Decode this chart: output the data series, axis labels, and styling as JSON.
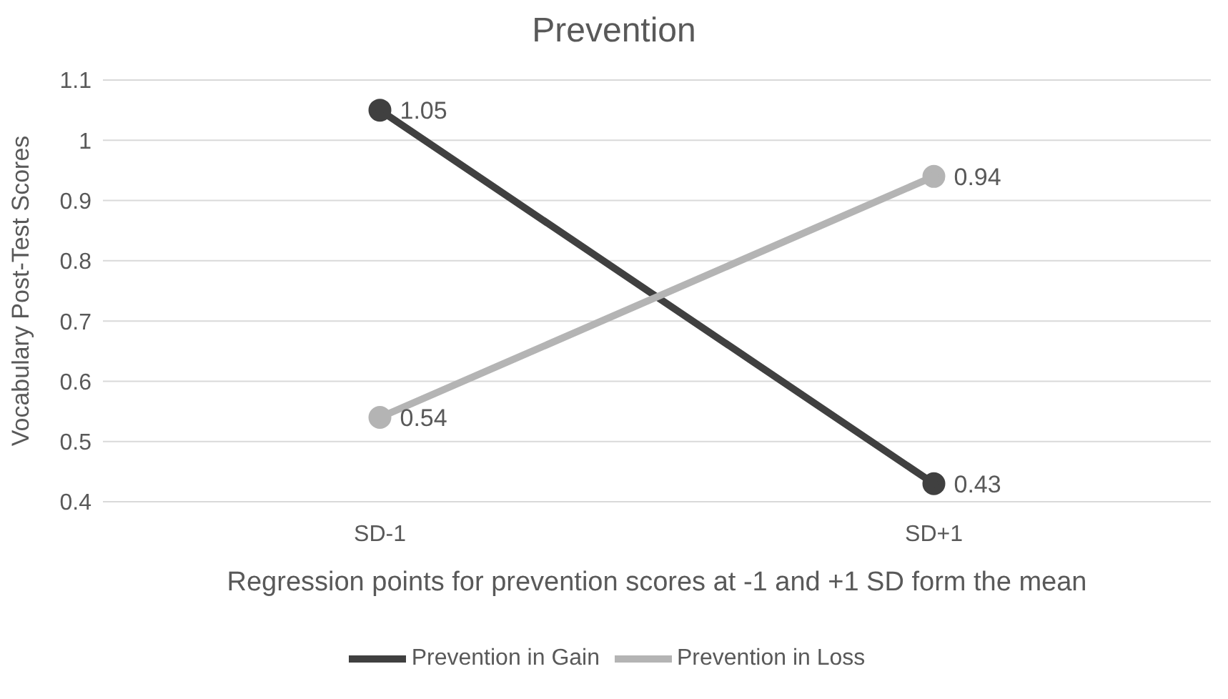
{
  "chart_data": {
    "type": "line",
    "title": "Prevention",
    "xlabel": "Regression points for prevention scores at -1 and +1 SD form the mean",
    "ylabel": "Vocabulary Post-Test Scores",
    "categories": [
      "SD-1",
      "SD+1"
    ],
    "series": [
      {
        "name": "Prevention in Gain",
        "color": "#404040",
        "values": [
          1.05,
          0.43
        ]
      },
      {
        "name": "Prevention in Loss",
        "color": "#b4b4b4",
        "values": [
          0.54,
          0.94
        ]
      }
    ],
    "ylim": [
      0.4,
      1.1
    ],
    "yticks": [
      0.4,
      0.5,
      0.6,
      0.7,
      0.8,
      0.9,
      1,
      1.1
    ],
    "grid": "y",
    "legend": "bottom",
    "marker": "circle",
    "line_style": "solid",
    "data_labels": true
  }
}
